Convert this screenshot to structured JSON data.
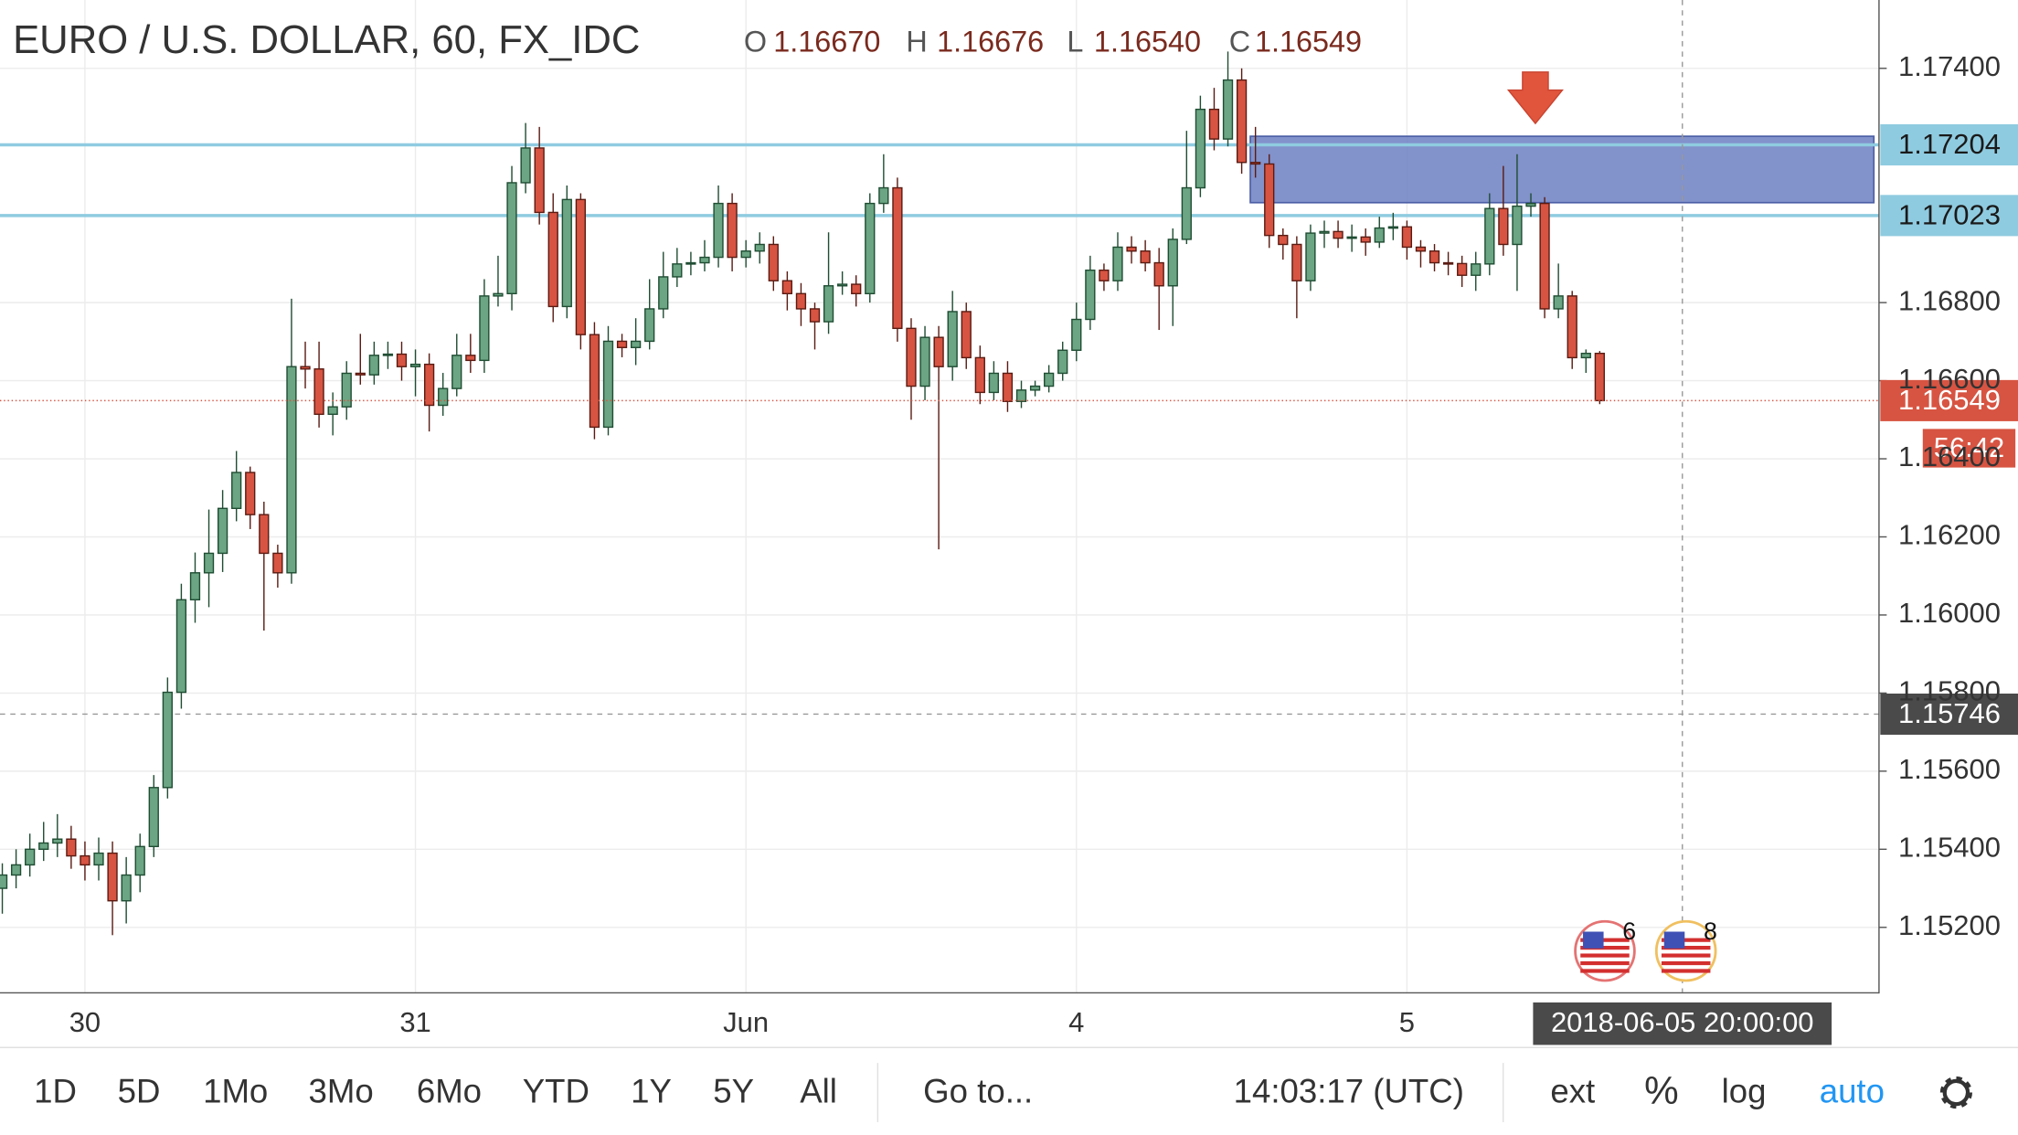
{
  "chart_data": {
    "type": "candlestick",
    "title": "EURO / U.S. DOLLAR, 60, FX_IDC",
    "legend": [
      {
        "key": "O",
        "value": "1.16670"
      },
      {
        "key": "H",
        "value": "1.16676"
      },
      {
        "key": "L",
        "value": "1.16540"
      },
      {
        "key": "C",
        "value": "1.16549"
      }
    ],
    "up_color": "#6ba583",
    "down_color": "#d75442",
    "categories": [
      null,
      null,
      null,
      null,
      null,
      null,
      "30",
      null,
      null,
      null,
      null,
      null,
      null,
      null,
      null,
      null,
      null,
      null,
      null,
      null,
      null,
      null,
      null,
      null,
      null,
      null,
      null,
      null,
      null,
      null,
      "31",
      null,
      null,
      null,
      null,
      null,
      null,
      null,
      null,
      null,
      null,
      null,
      null,
      null,
      null,
      null,
      null,
      null,
      null,
      null,
      null,
      null,
      null,
      null,
      "Jun",
      null,
      null,
      null,
      null,
      null,
      null,
      null,
      null,
      null,
      null,
      null,
      null,
      null,
      null,
      null,
      null,
      null,
      null,
      null,
      null,
      null,
      null,
      null,
      "4",
      null,
      null,
      null,
      null,
      null,
      null,
      null,
      null,
      null,
      null,
      null,
      null,
      null,
      null,
      null,
      null,
      null,
      null,
      null,
      null,
      null,
      null,
      null,
      "5",
      null,
      null,
      null,
      null,
      null,
      null,
      null,
      null,
      null,
      null,
      null,
      null,
      null,
      null
    ],
    "open": [
      1.153,
      1.15334,
      1.1536,
      1.154,
      1.15416,
      1.15426,
      1.15383,
      1.1536,
      1.1539,
      1.15268,
      1.15334,
      1.15407,
      1.15558,
      1.15802,
      1.16039,
      1.16108,
      1.16158,
      1.16273,
      1.16365,
      1.16257,
      1.16158,
      1.16108,
      1.16636,
      1.1663,
      1.16514,
      1.16533,
      1.16619,
      1.16615,
      1.16665,
      1.16668,
      1.16636,
      1.16642,
      1.16537,
      1.1658,
      1.16665,
      1.16652,
      1.16817,
      1.16823,
      1.17107,
      1.17196,
      1.17031,
      1.1679,
      1.17064,
      1.16718,
      1.16481,
      1.16701,
      1.16685,
      1.16701,
      1.16784,
      1.16866,
      1.16899,
      1.16902,
      1.16916,
      1.17054,
      1.16916,
      1.16932,
      1.16949,
      1.16856,
      1.16823,
      1.16784,
      1.16751,
      1.16843,
      1.16847,
      1.16823,
      1.17054,
      1.17094,
      1.16734,
      1.16586,
      1.16711,
      1.16636,
      1.16777,
      1.16659,
      1.1657,
      1.16619,
      1.16547,
      1.16576,
      1.16586,
      1.16619,
      1.16678,
      1.16757,
      1.16883,
      1.16856,
      1.16942,
      1.16932,
      1.16902,
      1.16843,
      1.16962,
      1.17094,
      1.17295,
      1.17219,
      1.1737,
      1.17159,
      1.17155,
      1.16972,
      1.16949,
      1.16856,
      1.16978,
      1.16982,
      1.16965,
      1.16968,
      1.16955,
      1.16991,
      1.16994,
      1.16942,
      1.16932,
      1.16902,
      1.169,
      1.1687,
      1.16899,
      1.17041,
      1.16949,
      1.17047,
      1.17054,
      1.16784,
      1.16817,
      1.16659,
      1.1667
    ],
    "high": [
      1.15364,
      1.154,
      1.1544,
      1.1547,
      1.1549,
      1.1546,
      1.1542,
      1.1543,
      1.1542,
      1.1538,
      1.1544,
      1.1559,
      1.1584,
      1.1608,
      1.1616,
      1.1627,
      1.1632,
      1.1642,
      1.1638,
      1.1629,
      1.1618,
      1.1681,
      1.167,
      1.167,
      1.1657,
      1.1665,
      1.1672,
      1.167,
      1.167,
      1.167,
      1.1668,
      1.1667,
      1.1662,
      1.1672,
      1.1672,
      1.1686,
      1.1692,
      1.1715,
      1.1726,
      1.1725,
      1.1708,
      1.171,
      1.1708,
      1.1675,
      1.1674,
      1.1672,
      1.1676,
      1.1686,
      1.1693,
      1.1694,
      1.1693,
      1.1696,
      1.171,
      1.1708,
      1.1696,
      1.1698,
      1.1697,
      1.1688,
      1.1685,
      1.168,
      1.1698,
      1.1688,
      1.1687,
      1.1708,
      1.1718,
      1.1712,
      1.1676,
      1.1674,
      1.1674,
      1.1683,
      1.168,
      1.1669,
      1.1665,
      1.1665,
      1.166,
      1.166,
      1.1664,
      1.167,
      1.168,
      1.1692,
      1.169,
      1.1698,
      1.1697,
      1.1696,
      1.1694,
      1.1699,
      1.1724,
      1.1733,
      1.1735,
      1.17443,
      1.174,
      1.1725,
      1.1718,
      1.1699,
      1.1697,
      1.17,
      1.1701,
      1.1701,
      1.17,
      1.1699,
      1.1702,
      1.1703,
      1.1701,
      1.1696,
      1.1695,
      1.1693,
      1.1692,
      1.1693,
      1.1708,
      1.1715,
      1.1718,
      1.1708,
      1.1707,
      1.169,
      1.1683,
      1.1668,
      1.16676
    ],
    "low": [
      1.15235,
      1.153,
      1.1533,
      1.1537,
      1.1538,
      1.1535,
      1.1532,
      1.1532,
      1.1518,
      1.1521,
      1.1529,
      1.1538,
      1.1553,
      1.1576,
      1.1598,
      1.1602,
      1.1611,
      1.1624,
      1.1622,
      1.1596,
      1.1607,
      1.1608,
      1.1658,
      1.1648,
      1.1646,
      1.165,
      1.1659,
      1.1659,
      1.1663,
      1.166,
      1.1656,
      1.1647,
      1.1651,
      1.1656,
      1.1662,
      1.1662,
      1.1679,
      1.1678,
      1.1708,
      1.17,
      1.1675,
      1.1676,
      1.1668,
      1.1645,
      1.1646,
      1.1666,
      1.1664,
      1.1668,
      1.1676,
      1.1684,
      1.1687,
      1.1688,
      1.1689,
      1.1688,
      1.1689,
      1.169,
      1.1683,
      1.1678,
      1.1674,
      1.1668,
      1.1672,
      1.1682,
      1.1679,
      1.168,
      1.1703,
      1.167,
      1.165,
      1.1655,
      1.16168,
      1.166,
      1.1663,
      1.1654,
      1.1655,
      1.1652,
      1.1653,
      1.1656,
      1.1657,
      1.166,
      1.1665,
      1.1673,
      1.1683,
      1.1683,
      1.169,
      1.1688,
      1.1673,
      1.1674,
      1.1695,
      1.1707,
      1.1719,
      1.172,
      1.1713,
      1.1712,
      1.1694,
      1.1691,
      1.1676,
      1.1683,
      1.1694,
      1.1694,
      1.1693,
      1.1692,
      1.1694,
      1.1696,
      1.1691,
      1.1689,
      1.1688,
      1.1687,
      1.1684,
      1.1683,
      1.1687,
      1.1692,
      1.1683,
      1.1702,
      1.1676,
      1.1676,
      1.1663,
      1.1662,
      1.1654
    ],
    "close": [
      1.15334,
      1.1536,
      1.154,
      1.15416,
      1.15426,
      1.15383,
      1.1536,
      1.1539,
      1.15268,
      1.15334,
      1.15407,
      1.15558,
      1.15802,
      1.16039,
      1.16108,
      1.16158,
      1.16273,
      1.16365,
      1.16257,
      1.16158,
      1.16108,
      1.16636,
      1.1663,
      1.16514,
      1.16533,
      1.16619,
      1.16615,
      1.16665,
      1.16668,
      1.16636,
      1.16642,
      1.16537,
      1.1658,
      1.16665,
      1.16652,
      1.16817,
      1.16823,
      1.17107,
      1.17196,
      1.17031,
      1.1679,
      1.17064,
      1.16718,
      1.16481,
      1.16701,
      1.16685,
      1.16701,
      1.16784,
      1.16866,
      1.16899,
      1.16902,
      1.16916,
      1.17054,
      1.16916,
      1.16932,
      1.16949,
      1.16856,
      1.16823,
      1.16784,
      1.16751,
      1.16843,
      1.16847,
      1.16823,
      1.17054,
      1.17094,
      1.16734,
      1.16586,
      1.16711,
      1.16636,
      1.16777,
      1.16659,
      1.1657,
      1.16619,
      1.16547,
      1.16576,
      1.16586,
      1.16619,
      1.16678,
      1.16757,
      1.16883,
      1.16856,
      1.16942,
      1.16932,
      1.16902,
      1.16843,
      1.16962,
      1.17094,
      1.17295,
      1.17219,
      1.1737,
      1.17159,
      1.17155,
      1.16972,
      1.16949,
      1.16856,
      1.16978,
      1.16982,
      1.16965,
      1.16968,
      1.16955,
      1.16991,
      1.16994,
      1.16942,
      1.16932,
      1.16902,
      1.169,
      1.1687,
      1.16899,
      1.17041,
      1.16949,
      1.17047,
      1.17054,
      1.16784,
      1.16817,
      1.16659,
      1.1667,
      1.16549
    ],
    "ylim": [
      1.15034,
      1.17575
    ],
    "yticks": [
      {
        "value": 1.174,
        "label": "1.17400"
      },
      {
        "value": 1.168,
        "label": "1.16800"
      },
      {
        "value": 1.166,
        "label": "1.16600"
      },
      {
        "value": 1.164,
        "label": "1.16400"
      },
      {
        "value": 1.162,
        "label": "1.16200"
      },
      {
        "value": 1.16,
        "label": "1.16000"
      },
      {
        "value": 1.158,
        "label": "1.15800"
      },
      {
        "value": 1.156,
        "label": "1.15600"
      },
      {
        "value": 1.154,
        "label": "1.15400"
      },
      {
        "value": 1.152,
        "label": "1.15200"
      }
    ],
    "grid": true,
    "levels": [
      {
        "value": 1.17204,
        "label": "1.17204",
        "color": "#8fcbe0"
      },
      {
        "value": 1.17023,
        "label": "1.17023",
        "color": "#8fcbe0"
      }
    ],
    "zone": {
      "from": 1.17056,
      "to": 1.17226,
      "color": "#6c7fc2"
    },
    "last_price": {
      "value": 1.16549,
      "label": "1.16549",
      "countdown": "56:42",
      "color": "#d75442"
    },
    "crosshair": {
      "value": 1.15746,
      "label": "1.15746",
      "time": "2018-06-05 20:00:00"
    },
    "events": [
      {
        "label": "6"
      },
      {
        "label": "8"
      }
    ]
  },
  "toolbar": {
    "ranges": [
      "1D",
      "5D",
      "1Mo",
      "3Mo",
      "6Mo",
      "YTD",
      "1Y",
      "5Y",
      "All"
    ],
    "goto": "Go to...",
    "clock": "14:03:17 (UTC)",
    "options": [
      "ext",
      "%",
      "log",
      "auto"
    ]
  }
}
